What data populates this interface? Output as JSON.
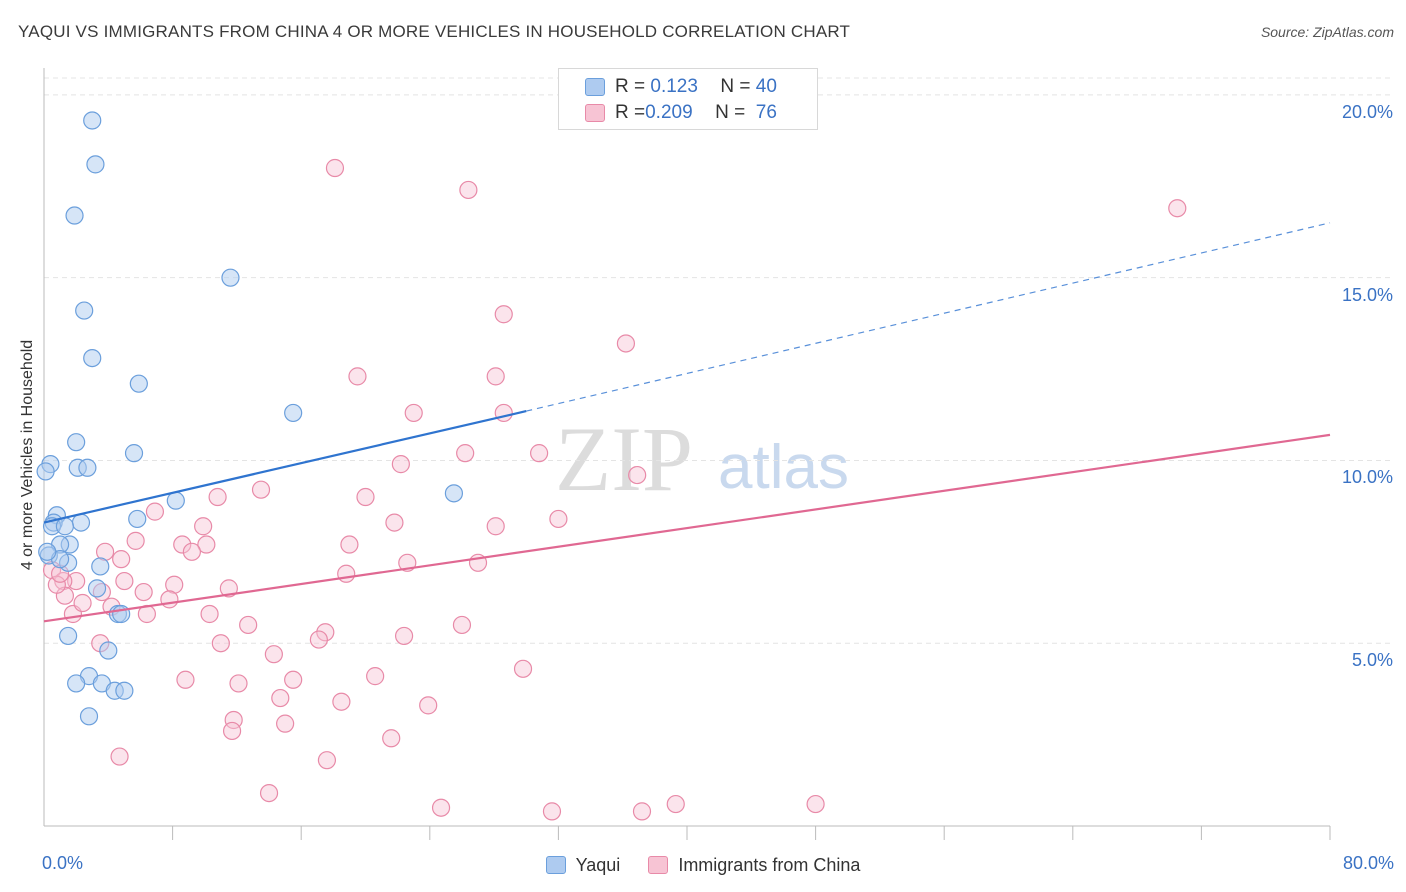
{
  "title": "YAQUI VS IMMIGRANTS FROM CHINA 4 OR MORE VEHICLES IN HOUSEHOLD CORRELATION CHART",
  "source": "Source: ZipAtlas.com",
  "watermark": {
    "zip": "ZIP",
    "atlas": "atlas"
  },
  "legend_top": [
    {
      "r_label": "R = ",
      "r_value": "0.123",
      "n_label": "N = ",
      "n_value": "40"
    },
    {
      "r_label": "R = ",
      "r_value": "0.209",
      "n_label": "N = ",
      "n_value": "76"
    }
  ],
  "colors": {
    "blue_fill": "#aecbf0",
    "blue_stroke": "#6b9fdc",
    "blue_line": "#2f74cf",
    "pink_fill": "#f7c4d4",
    "pink_stroke": "#e88aa8",
    "pink_line": "#e06892",
    "axis_text": "#3a72c4",
    "grid": "#e4e4e4"
  },
  "chart_data": {
    "type": "scatter",
    "title": "YAQUI VS IMMIGRANTS FROM CHINA 4 OR MORE VEHICLES IN HOUSEHOLD CORRELATION CHART",
    "xlabel": "",
    "ylabel": "4 or more Vehicles in Household",
    "xlim": [
      0,
      80
    ],
    "ylim": [
      0,
      20.9
    ],
    "x_tick_labels": [
      "0.0%",
      "80.0%"
    ],
    "y_ticks": [
      5,
      10,
      15,
      20
    ],
    "y_tick_labels": [
      "5.0%",
      "10.0%",
      "15.0%",
      "20.0%"
    ],
    "series": [
      {
        "name": "Yaqui",
        "r": 0.123,
        "n": 40,
        "trend": {
          "x0": 0,
          "y0": 8.3,
          "x1": 30,
          "y1": 11.35,
          "dash_to_x": 80,
          "dash_to_y": 16.5
        },
        "points": [
          [
            3.0,
            19.3
          ],
          [
            3.2,
            18.1
          ],
          [
            1.9,
            16.7
          ],
          [
            11.6,
            15.0
          ],
          [
            2.5,
            14.1
          ],
          [
            3.0,
            12.8
          ],
          [
            5.9,
            12.1
          ],
          [
            15.5,
            11.3
          ],
          [
            2.0,
            10.5
          ],
          [
            5.6,
            10.2
          ],
          [
            0.4,
            9.9
          ],
          [
            2.1,
            9.8
          ],
          [
            2.7,
            9.8
          ],
          [
            0.1,
            9.7
          ],
          [
            25.5,
            9.1
          ],
          [
            8.2,
            8.9
          ],
          [
            0.8,
            8.5
          ],
          [
            0.6,
            8.3
          ],
          [
            2.3,
            8.3
          ],
          [
            5.8,
            8.4
          ],
          [
            0.5,
            8.2
          ],
          [
            1.3,
            8.2
          ],
          [
            1.6,
            7.7
          ],
          [
            1.0,
            7.7
          ],
          [
            3.5,
            7.1
          ],
          [
            1.5,
            7.2
          ],
          [
            0.3,
            7.4
          ],
          [
            1.0,
            7.3
          ],
          [
            3.3,
            6.5
          ],
          [
            4.6,
            5.8
          ],
          [
            4.8,
            5.8
          ],
          [
            1.5,
            5.2
          ],
          [
            4.0,
            4.8
          ],
          [
            2.8,
            4.1
          ],
          [
            2.0,
            3.9
          ],
          [
            3.6,
            3.9
          ],
          [
            4.4,
            3.7
          ],
          [
            5.0,
            3.7
          ],
          [
            2.8,
            3.0
          ],
          [
            0.2,
            7.5
          ]
        ]
      },
      {
        "name": "Immigrants from China",
        "r": 0.209,
        "n": 76,
        "trend": {
          "x0": 0,
          "y0": 5.6,
          "x1": 80,
          "y1": 10.7
        },
        "points": [
          [
            18.1,
            18.0
          ],
          [
            26.4,
            17.4
          ],
          [
            70.5,
            16.9
          ],
          [
            28.6,
            14.0
          ],
          [
            36.2,
            13.2
          ],
          [
            19.5,
            12.3
          ],
          [
            28.1,
            12.3
          ],
          [
            23.0,
            11.3
          ],
          [
            28.6,
            11.3
          ],
          [
            26.2,
            10.2
          ],
          [
            30.8,
            10.2
          ],
          [
            22.2,
            9.9
          ],
          [
            36.9,
            9.6
          ],
          [
            13.5,
            9.2
          ],
          [
            10.8,
            9.0
          ],
          [
            20.0,
            9.0
          ],
          [
            6.9,
            8.6
          ],
          [
            28.1,
            8.2
          ],
          [
            21.8,
            8.3
          ],
          [
            32.0,
            8.4
          ],
          [
            9.9,
            8.2
          ],
          [
            19.0,
            7.7
          ],
          [
            8.6,
            7.7
          ],
          [
            10.1,
            7.7
          ],
          [
            5.7,
            7.8
          ],
          [
            3.8,
            7.5
          ],
          [
            9.2,
            7.5
          ],
          [
            4.8,
            7.3
          ],
          [
            22.6,
            7.2
          ],
          [
            27.0,
            7.2
          ],
          [
            0.5,
            7.0
          ],
          [
            18.8,
            6.9
          ],
          [
            2.0,
            6.7
          ],
          [
            1.2,
            6.7
          ],
          [
            5.0,
            6.7
          ],
          [
            8.1,
            6.6
          ],
          [
            11.5,
            6.5
          ],
          [
            3.6,
            6.4
          ],
          [
            6.2,
            6.4
          ],
          [
            1.3,
            6.3
          ],
          [
            7.8,
            6.2
          ],
          [
            4.2,
            6.0
          ],
          [
            1.8,
            5.8
          ],
          [
            6.4,
            5.8
          ],
          [
            10.3,
            5.8
          ],
          [
            12.7,
            5.5
          ],
          [
            26.0,
            5.5
          ],
          [
            17.5,
            5.3
          ],
          [
            22.4,
            5.2
          ],
          [
            17.1,
            5.1
          ],
          [
            11.0,
            5.0
          ],
          [
            3.5,
            5.0
          ],
          [
            14.3,
            4.7
          ],
          [
            29.8,
            4.3
          ],
          [
            8.8,
            4.0
          ],
          [
            12.1,
            3.9
          ],
          [
            15.5,
            4.0
          ],
          [
            20.6,
            4.1
          ],
          [
            14.7,
            3.5
          ],
          [
            18.5,
            3.4
          ],
          [
            23.9,
            3.3
          ],
          [
            11.8,
            2.9
          ],
          [
            15.0,
            2.8
          ],
          [
            11.7,
            2.6
          ],
          [
            21.6,
            2.4
          ],
          [
            4.7,
            1.9
          ],
          [
            17.6,
            1.8
          ],
          [
            14.0,
            0.9
          ],
          [
            24.7,
            0.5
          ],
          [
            31.6,
            0.4
          ],
          [
            37.2,
            0.4
          ],
          [
            39.3,
            0.6
          ],
          [
            48.0,
            0.6
          ],
          [
            2.4,
            6.1
          ],
          [
            0.8,
            6.6
          ],
          [
            1.0,
            6.9
          ]
        ]
      }
    ]
  },
  "bottom_legend": [
    {
      "label": "Yaqui"
    },
    {
      "label": "Immigrants from China"
    }
  ]
}
